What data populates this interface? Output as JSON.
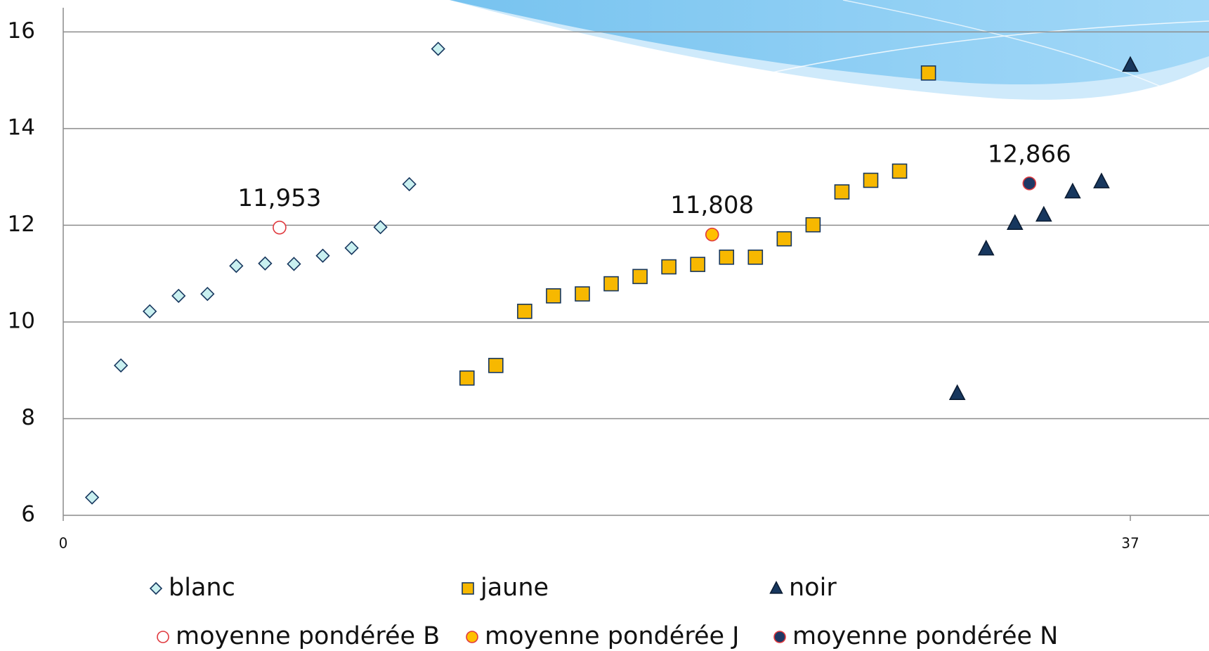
{
  "chart_data": {
    "type": "scatter",
    "xlim": [
      0,
      40
    ],
    "xticks": [
      0,
      37
    ],
    "ylim": [
      6,
      16.5
    ],
    "yticks": [
      6,
      8,
      10,
      12,
      14,
      16
    ],
    "grid": true,
    "series": [
      {
        "name": "blanc",
        "marker": "diamond",
        "color": "#c9f0f0",
        "edge": "#17375e",
        "x": [
          1,
          2,
          3,
          4,
          5,
          6,
          7,
          8,
          9,
          10,
          11,
          12,
          13
        ],
        "values": [
          6.37,
          9.1,
          10.22,
          10.54,
          10.58,
          11.16,
          11.21,
          11.2,
          11.37,
          11.53,
          11.96,
          12.85,
          15.65
        ]
      },
      {
        "name": "jaune",
        "marker": "square",
        "color": "#f7b800",
        "edge": "#17375e",
        "x": [
          14,
          15,
          16,
          17,
          18,
          19,
          20,
          21,
          22,
          23,
          24,
          25,
          26,
          27,
          28,
          29,
          30
        ],
        "values": [
          8.84,
          9.1,
          10.22,
          10.54,
          10.58,
          10.79,
          10.94,
          11.14,
          11.19,
          11.34,
          11.34,
          11.72,
          12.01,
          12.69,
          12.93,
          13.12,
          15.15
        ]
      },
      {
        "name": "noir",
        "marker": "triangle",
        "color": "#17375e",
        "edge": "#0b1c33",
        "x": [
          31,
          32,
          33,
          34,
          35,
          36,
          37
        ],
        "values": [
          8.52,
          11.51,
          12.04,
          12.21,
          12.69,
          12.9,
          15.31
        ]
      },
      {
        "name": "moyenne pondérée B",
        "marker": "circle",
        "color": "#ffffff",
        "edge": "#e0393e",
        "x": [
          7.5
        ],
        "values": [
          11.953
        ],
        "value_labels": [
          "11,953"
        ]
      },
      {
        "name": "moyenne pondérée J",
        "marker": "circle",
        "color": "#ffc000",
        "edge": "#e0393e",
        "x": [
          22.5
        ],
        "values": [
          11.808
        ],
        "value_labels": [
          "11,808"
        ]
      },
      {
        "name": "moyenne pondérée N",
        "marker": "circle",
        "color": "#1f3864",
        "edge": "#e0393e",
        "x": [
          33.5
        ],
        "values": [
          12.866
        ],
        "value_labels": [
          "12,866"
        ]
      }
    ]
  }
}
